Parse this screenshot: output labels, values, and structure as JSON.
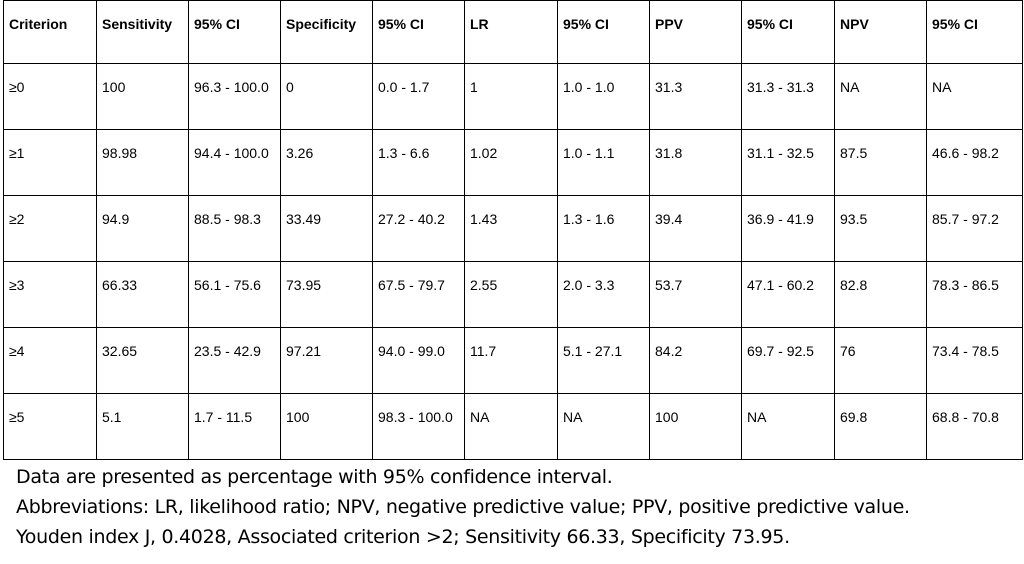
{
  "table": {
    "headers": [
      "Criterion",
      "Sensitivity",
      "95% CI",
      "Specificity",
      "95% CI",
      "LR",
      "95% CI",
      "PPV",
      "95% CI",
      "NPV",
      "95% CI"
    ],
    "rows": [
      [
        "≥0",
        "100",
        "96.3 - 100.0",
        "0",
        "0.0 - 1.7",
        "1",
        "1.0 - 1.0",
        "31.3",
        "31.3 - 31.3",
        "NA",
        "NA"
      ],
      [
        "≥1",
        "98.98",
        "94.4 - 100.0",
        "3.26",
        "1.3 - 6.6",
        "1.02",
        "1.0 - 1.1",
        "31.8",
        "31.1 - 32.5",
        "87.5",
        "46.6 - 98.2"
      ],
      [
        "≥2",
        "94.9",
        "88.5 - 98.3",
        "33.49",
        "27.2 - 40.2",
        "1.43",
        "1.3 - 1.6",
        "39.4",
        "36.9 - 41.9",
        "93.5",
        "85.7 - 97.2"
      ],
      [
        "≥3",
        "66.33",
        "56.1 - 75.6",
        "73.95",
        "67.5 - 79.7",
        "2.55",
        "2.0 - 3.3",
        "53.7",
        "47.1 - 60.2",
        "82.8",
        "78.3 - 86.5"
      ],
      [
        "≥4",
        "32.65",
        "23.5 - 42.9",
        "97.21",
        "94.0 - 99.0",
        "11.7",
        "5.1 - 27.1",
        "84.2",
        "69.7 - 92.5",
        "76",
        "73.4 - 78.5"
      ],
      [
        "≥5",
        "5.1",
        "1.7 - 11.5",
        "100",
        "98.3 - 100.0",
        "NA",
        "NA",
        "100",
        "NA",
        "69.8",
        "68.8 - 70.8"
      ]
    ]
  },
  "notes": [
    "Data are presented as percentage with 95% confidence interval.",
    "Abbreviations: LR, likelihood ratio; NPV, negative predictive value; PPV, positive predictive value.",
    "Youden index J, 0.4028,  Associated criterion >2; Sensitivity 66.33, Specificity 73.95."
  ]
}
